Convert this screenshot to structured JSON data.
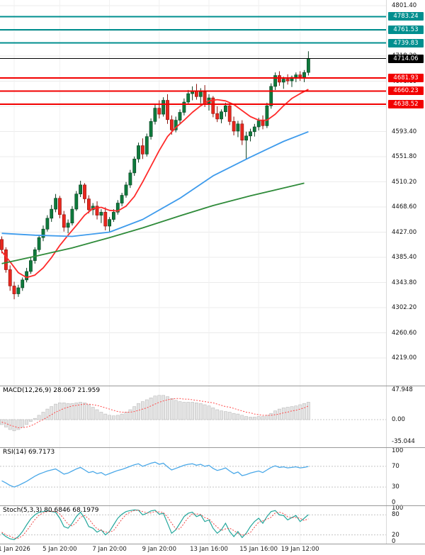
{
  "colors": {
    "resistance": "#008f8f",
    "support": "#f20000",
    "current_price": "#000000",
    "candle_up_fill": "#0e7a3c",
    "candle_up_stroke": "#093f20",
    "candle_down_fill": "#e8271e",
    "candle_down_stroke": "#8c120b",
    "ma_fast": "#ff2a2a",
    "ma_mid": "#3e9bec",
    "ma_slow": "#2f8b3a",
    "macd_bar_fill": "#e4e4e4",
    "macd_bar_stroke": "#bcbcbc",
    "macd_signal": "#ff4a4a",
    "rsi_line": "#4aa8e8",
    "stoch_k": "#23a79c",
    "stoch_d": "#ef4444"
  },
  "chart_data": [
    {
      "type": "candlestick",
      "timeframe_hint": "4h",
      "y_ticks": [
        4801.4,
        4759.8,
        4718.2,
        4676.6,
        4635.0,
        4593.4,
        4551.8,
        4510.2,
        4468.6,
        4427.0,
        4385.4,
        4343.8,
        4302.2,
        4260.6,
        4219.0
      ],
      "x_ticks": [
        {
          "i": 3,
          "label": "1 Jan 2026"
        },
        {
          "i": 14,
          "label": "5 Jan 20:00"
        },
        {
          "i": 26,
          "label": "7 Jan 20:00"
        },
        {
          "i": 38,
          "label": "9 Jan 20:00"
        },
        {
          "i": 50,
          "label": "13 Jan 16:00"
        },
        {
          "i": 62,
          "label": "15 Jan 16:00"
        },
        {
          "i": 72,
          "label": "19 Jan 12:00"
        }
      ],
      "h_lines": [
        {
          "value": 4783.24,
          "label": "4783.24",
          "type": "resistance"
        },
        {
          "value": 4761.53,
          "label": "4761.53",
          "type": "resistance"
        },
        {
          "value": 4739.83,
          "label": "4739.83",
          "type": "resistance"
        },
        {
          "value": 4714.06,
          "label": "4714.06",
          "type": "price"
        },
        {
          "value": 4681.93,
          "label": "4681.93",
          "type": "support"
        },
        {
          "value": 4660.23,
          "label": "4660.23",
          "type": "support"
        },
        {
          "value": 4638.52,
          "label": "4638.52",
          "type": "support"
        }
      ],
      "candles": [
        [
          4415,
          4420,
          4392,
          4398
        ],
        [
          4398,
          4402,
          4360,
          4365
        ],
        [
          4365,
          4372,
          4330,
          4338
        ],
        [
          4338,
          4345,
          4316,
          4325
        ],
        [
          4325,
          4340,
          4320,
          4335
        ],
        [
          4335,
          4352,
          4330,
          4348
        ],
        [
          4348,
          4368,
          4344,
          4362
        ],
        [
          4362,
          4385,
          4358,
          4380
        ],
        [
          4380,
          4402,
          4375,
          4398
        ],
        [
          4398,
          4422,
          4394,
          4418
        ],
        [
          4418,
          4438,
          4412,
          4432
        ],
        [
          4432,
          4455,
          4428,
          4450
        ],
        [
          4450,
          4472,
          4444,
          4465
        ],
        [
          4465,
          4490,
          4460,
          4483
        ],
        [
          4483,
          4487,
          4450,
          4456
        ],
        [
          4456,
          4462,
          4428,
          4435
        ],
        [
          4435,
          4448,
          4425,
          4442
        ],
        [
          4442,
          4470,
          4438,
          4465
        ],
        [
          4465,
          4495,
          4462,
          4490
        ],
        [
          4490,
          4512,
          4485,
          4505
        ],
        [
          4505,
          4508,
          4475,
          4482
        ],
        [
          4482,
          4488,
          4458,
          4464
        ],
        [
          4464,
          4475,
          4455,
          4470
        ],
        [
          4470,
          4478,
          4448,
          4455
        ],
        [
          4455,
          4465,
          4442,
          4460
        ],
        [
          4460,
          4468,
          4430,
          4437
        ],
        [
          4437,
          4452,
          4428,
          4448
        ],
        [
          4448,
          4465,
          4444,
          4460
        ],
        [
          4460,
          4480,
          4456,
          4475
        ],
        [
          4475,
          4492,
          4470,
          4488
        ],
        [
          4488,
          4510,
          4484,
          4505
        ],
        [
          4505,
          4530,
          4500,
          4525
        ],
        [
          4525,
          4552,
          4520,
          4548
        ],
        [
          4548,
          4575,
          4542,
          4570
        ],
        [
          4570,
          4582,
          4548,
          4556
        ],
        [
          4556,
          4590,
          4552,
          4585
        ],
        [
          4585,
          4615,
          4580,
          4610
        ],
        [
          4610,
          4638,
          4605,
          4632
        ],
        [
          4632,
          4645,
          4615,
          4622
        ],
        [
          4622,
          4650,
          4618,
          4645
        ],
        [
          4645,
          4655,
          4606,
          4613
        ],
        [
          4613,
          4620,
          4588,
          4596
        ],
        [
          4596,
          4618,
          4592,
          4612
        ],
        [
          4612,
          4630,
          4605,
          4625
        ],
        [
          4625,
          4648,
          4620,
          4642
        ],
        [
          4642,
          4662,
          4638,
          4656
        ],
        [
          4656,
          4668,
          4645,
          4661
        ],
        [
          4661,
          4672,
          4646,
          4651
        ],
        [
          4651,
          4665,
          4640,
          4659
        ],
        [
          4659,
          4670,
          4634,
          4640
        ],
        [
          4640,
          4655,
          4628,
          4649
        ],
        [
          4649,
          4652,
          4617,
          4623
        ],
        [
          4623,
          4635,
          4609,
          4614
        ],
        [
          4614,
          4630,
          4607,
          4626
        ],
        [
          4626,
          4641,
          4618,
          4636
        ],
        [
          4636,
          4642,
          4604,
          4610
        ],
        [
          4610,
          4618,
          4587,
          4594
        ],
        [
          4594,
          4611,
          4584,
          4606
        ],
        [
          4606,
          4612,
          4571,
          4579
        ],
        [
          4579,
          4593,
          4548,
          4586
        ],
        [
          4586,
          4598,
          4577,
          4593
        ],
        [
          4593,
          4606,
          4585,
          4601
        ],
        [
          4601,
          4616,
          4595,
          4611
        ],
        [
          4611,
          4620,
          4597,
          4603
        ],
        [
          4603,
          4641,
          4599,
          4636
        ],
        [
          4636,
          4673,
          4631,
          4668
        ],
        [
          4668,
          4691,
          4662,
          4686
        ],
        [
          4686,
          4693,
          4669,
          4675
        ],
        [
          4675,
          4684,
          4664,
          4680
        ],
        [
          4680,
          4688,
          4671,
          4677
        ],
        [
          4677,
          4686,
          4667,
          4683
        ],
        [
          4683,
          4691,
          4675,
          4687
        ],
        [
          4687,
          4693,
          4677,
          4683
        ],
        [
          4683,
          4695,
          4675,
          4691
        ],
        [
          4691,
          4726,
          4686,
          4714.06
        ]
      ],
      "overlays": [
        {
          "name": "ma-fast",
          "color_key": "ma_fast",
          "points": [
            [
              0,
              4395
            ],
            [
              2,
              4378
            ],
            [
              4,
              4360
            ],
            [
              6,
              4352
            ],
            [
              8,
              4356
            ],
            [
              10,
              4368
            ],
            [
              12,
              4385
            ],
            [
              14,
              4405
            ],
            [
              16,
              4422
            ],
            [
              18,
              4438
            ],
            [
              20,
              4455
            ],
            [
              22,
              4466
            ],
            [
              24,
              4468
            ],
            [
              26,
              4463
            ],
            [
              28,
              4462
            ],
            [
              30,
              4470
            ],
            [
              32,
              4486
            ],
            [
              34,
              4510
            ],
            [
              36,
              4536
            ],
            [
              38,
              4562
            ],
            [
              40,
              4585
            ],
            [
              42,
              4600
            ],
            [
              44,
              4612
            ],
            [
              46,
              4625
            ],
            [
              48,
              4636
            ],
            [
              50,
              4644
            ],
            [
              52,
              4646
            ],
            [
              54,
              4644
            ],
            [
              56,
              4638
            ],
            [
              58,
              4628
            ],
            [
              60,
              4618
            ],
            [
              62,
              4612
            ],
            [
              64,
              4612
            ],
            [
              66,
              4622
            ],
            [
              68,
              4636
            ],
            [
              70,
              4648
            ],
            [
              72,
              4656
            ],
            [
              74,
              4663
            ]
          ]
        },
        {
          "name": "ma-mid",
          "color_key": "ma_mid",
          "points": [
            [
              0,
              4425
            ],
            [
              8,
              4422
            ],
            [
              17,
              4420
            ],
            [
              26,
              4427
            ],
            [
              34,
              4448
            ],
            [
              43,
              4483
            ],
            [
              51,
              4520
            ],
            [
              60,
              4551
            ],
            [
              68,
              4577
            ],
            [
              74,
              4593
            ]
          ]
        },
        {
          "name": "ma-slow",
          "color_key": "ma_slow",
          "points": [
            [
              0,
              4375
            ],
            [
              8,
              4387
            ],
            [
              17,
              4401
            ],
            [
              26,
              4418
            ],
            [
              34,
              4434
            ],
            [
              43,
              4454
            ],
            [
              51,
              4471
            ],
            [
              60,
              4487
            ],
            [
              68,
              4500
            ],
            [
              73,
              4508
            ]
          ]
        }
      ]
    },
    {
      "type": "macd_histogram",
      "label": "MACD(12,26,9) 28.067 21.959",
      "y_ticks": [
        {
          "v": 47.948,
          "label": "47.948"
        },
        {
          "v": 0,
          "label": "0.00"
        },
        {
          "v": -35.044,
          "label": "-35.044"
        }
      ],
      "guides": [
        0
      ],
      "hist": [
        -8,
        -12,
        -16,
        -18,
        -16,
        -12,
        -8,
        -3,
        2,
        7,
        12,
        17,
        21,
        25,
        27,
        27,
        26,
        26,
        27,
        28,
        27,
        24,
        20,
        16,
        12,
        9,
        7,
        6,
        7,
        9,
        12,
        16,
        21,
        26,
        29,
        32,
        35,
        38,
        39,
        39,
        37,
        34,
        31,
        29,
        28,
        28,
        28,
        27,
        26,
        24,
        22,
        19,
        16,
        14,
        13,
        12,
        10,
        9,
        7,
        5,
        4,
        4,
        5,
        5,
        7,
        10,
        14,
        17,
        19,
        20,
        21,
        22,
        24,
        26,
        28.067
      ],
      "signal": [
        -4,
        -6,
        -9,
        -11,
        -13,
        -13,
        -12,
        -10,
        -7,
        -3,
        0,
        4,
        8,
        12,
        15,
        18,
        20,
        22,
        23,
        24,
        25,
        25,
        24,
        23,
        21,
        19,
        17,
        15,
        13,
        12,
        12,
        12,
        13,
        15,
        17,
        19,
        22,
        25,
        28,
        30,
        32,
        33,
        34,
        34,
        33,
        33,
        32,
        31,
        30,
        29,
        28,
        27,
        25,
        23,
        21,
        20,
        18,
        16,
        14,
        12,
        11,
        9,
        8,
        7,
        7,
        7,
        8,
        9,
        11,
        12,
        14,
        15,
        17,
        19,
        21.959
      ]
    },
    {
      "type": "line",
      "label": "RSI(14) 69.7173",
      "y_ticks": [
        {
          "v": 100,
          "label": "100"
        },
        {
          "v": 70,
          "label": "70"
        },
        {
          "v": 30,
          "label": "30"
        },
        {
          "v": 0,
          "label": "0"
        }
      ],
      "guides": [
        70,
        30
      ],
      "values": [
        42,
        38,
        33,
        30,
        33,
        37,
        41,
        46,
        51,
        55,
        58,
        61,
        63,
        65,
        60,
        55,
        57,
        61,
        65,
        68,
        63,
        58,
        60,
        56,
        58,
        53,
        56,
        59,
        62,
        64,
        67,
        70,
        73,
        75,
        70,
        73,
        76,
        78,
        74,
        76,
        69,
        63,
        66,
        69,
        72,
        74,
        75,
        72,
        74,
        70,
        72,
        66,
        62,
        64,
        67,
        61,
        56,
        59,
        52,
        54,
        57,
        59,
        61,
        58,
        63,
        68,
        71,
        68,
        69,
        67,
        68,
        69,
        67,
        68,
        69.7173
      ]
    },
    {
      "type": "line2",
      "label": "Stoch(5,3,3) 80.6846 68.1979",
      "y_ticks": [
        {
          "v": 100,
          "label": "100"
        },
        {
          "v": 80,
          "label": "80"
        },
        {
          "v": 20,
          "label": "20"
        },
        {
          "v": 0,
          "label": "0"
        }
      ],
      "guides": [
        80,
        20
      ],
      "k": [
        25,
        15,
        8,
        6,
        15,
        30,
        50,
        68,
        80,
        88,
        90,
        92,
        90,
        88,
        70,
        45,
        40,
        55,
        75,
        88,
        70,
        45,
        40,
        28,
        35,
        20,
        30,
        50,
        70,
        82,
        90,
        93,
        95,
        94,
        80,
        85,
        92,
        94,
        82,
        85,
        55,
        25,
        35,
        55,
        75,
        85,
        88,
        75,
        80,
        60,
        65,
        40,
        25,
        35,
        55,
        30,
        15,
        30,
        12,
        25,
        45,
        60,
        70,
        55,
        75,
        90,
        93,
        80,
        78,
        65,
        72,
        78,
        60,
        70,
        80.6846
      ],
      "d": [
        28,
        20,
        16,
        10,
        10,
        17,
        32,
        49,
        66,
        79,
        86,
        90,
        91,
        90,
        83,
        68,
        52,
        47,
        57,
        73,
        78,
        68,
        52,
        38,
        34,
        28,
        28,
        33,
        50,
        67,
        81,
        88,
        93,
        94,
        90,
        86,
        86,
        90,
        89,
        87,
        74,
        55,
        38,
        38,
        55,
        72,
        83,
        83,
        81,
        72,
        68,
        55,
        43,
        33,
        38,
        40,
        33,
        25,
        19,
        22,
        27,
        43,
        58,
        62,
        67,
        73,
        86,
        88,
        84,
        74,
        72,
        72,
        70,
        63,
        68.1979
      ]
    }
  ]
}
